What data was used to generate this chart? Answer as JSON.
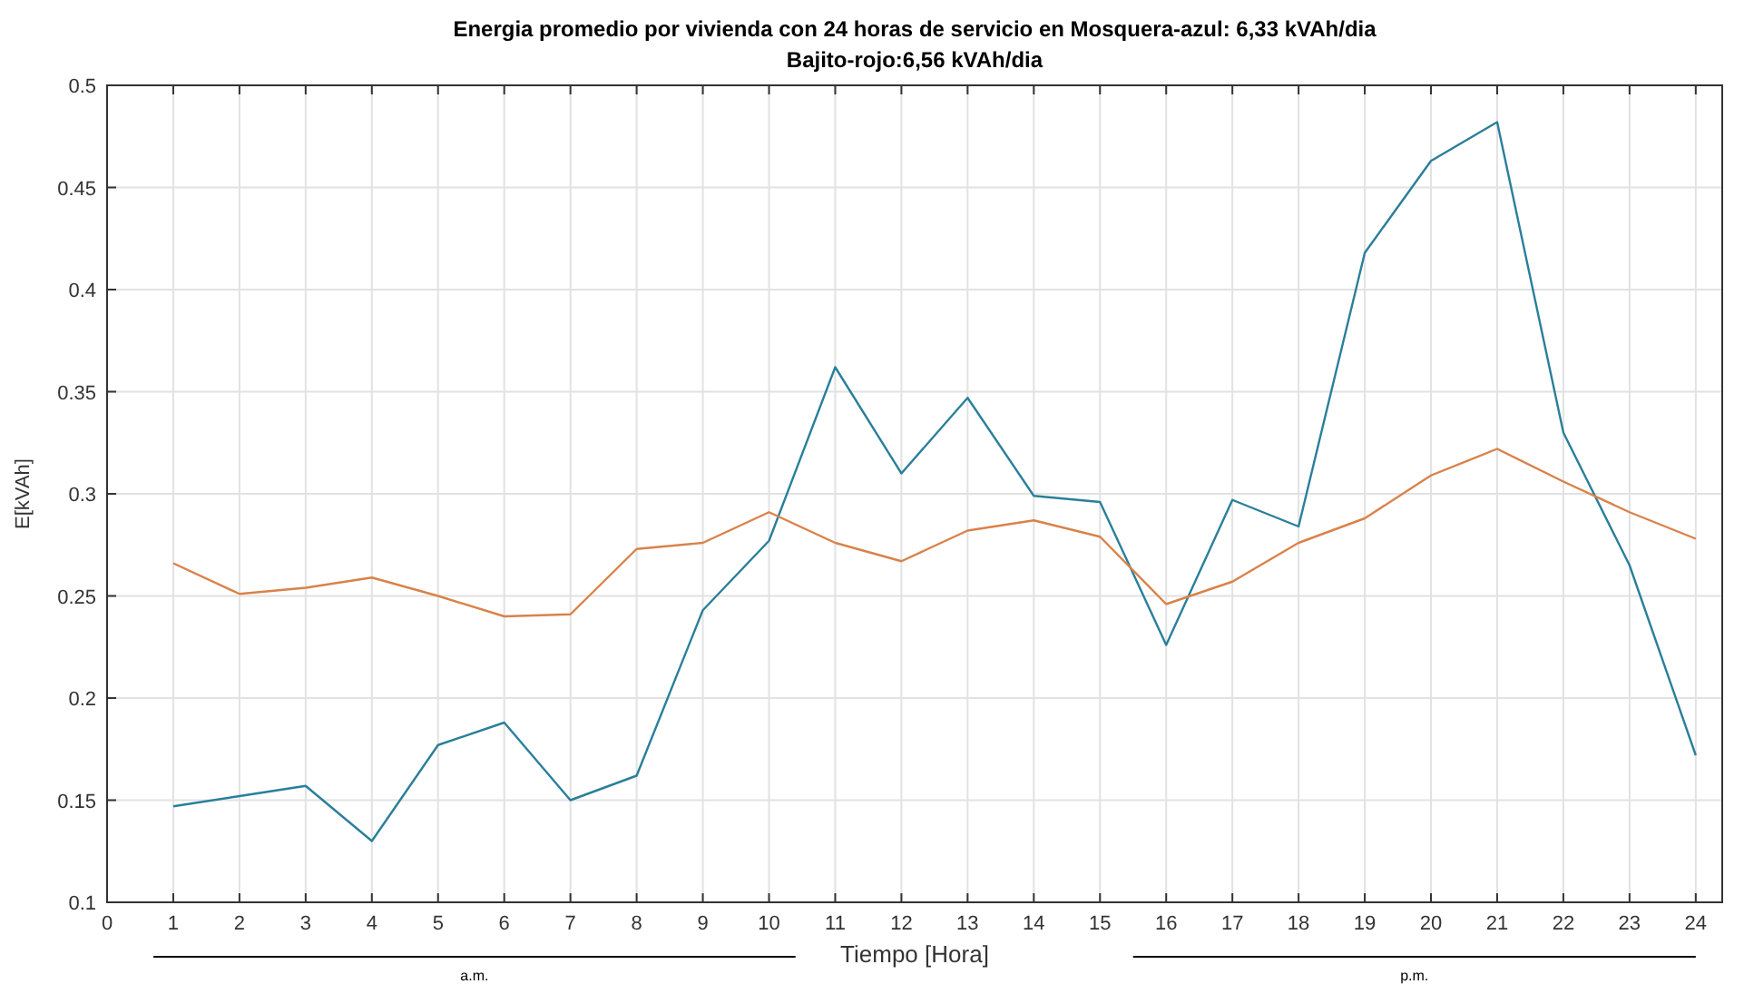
{
  "chart_data": {
    "type": "line",
    "title": "Energia promedio por vivienda con 24 horas de servicio en Mosquera-azul: 6,33 kVAh/dia",
    "subtitle": "Bajito-rojo:6,56 kVAh/dia",
    "xlabel": "Tiempo [Hora]",
    "ylabel": "E[kVAh]",
    "x": [
      1,
      2,
      3,
      4,
      5,
      6,
      7,
      8,
      9,
      10,
      11,
      12,
      13,
      14,
      15,
      16,
      17,
      18,
      19,
      20,
      21,
      22,
      23,
      24
    ],
    "series": [
      {
        "color": "#2a7f9a",
        "values": [
          0.147,
          0.152,
          0.157,
          0.13,
          0.177,
          0.188,
          0.15,
          0.162,
          0.243,
          0.277,
          0.362,
          0.31,
          0.347,
          0.299,
          0.296,
          0.226,
          0.297,
          0.284,
          0.418,
          0.463,
          0.482,
          0.33,
          0.265,
          0.172
        ]
      },
      {
        "color": "#d9824a",
        "values": [
          0.266,
          0.251,
          0.254,
          0.259,
          0.25,
          0.24,
          0.241,
          0.273,
          0.276,
          0.291,
          0.276,
          0.267,
          0.282,
          0.287,
          0.279,
          0.246,
          0.257,
          0.276,
          0.288,
          0.309,
          0.322,
          0.306,
          0.291,
          0.278
        ]
      }
    ],
    "xlim": [
      0,
      24.4
    ],
    "xticks": [
      0,
      1,
      2,
      3,
      4,
      5,
      6,
      7,
      8,
      9,
      10,
      11,
      12,
      13,
      14,
      15,
      16,
      17,
      18,
      19,
      20,
      21,
      22,
      23,
      24
    ],
    "ylim": [
      0.1,
      0.5
    ],
    "yticks": [
      0.1,
      0.15,
      0.2,
      0.25,
      0.3,
      0.35,
      0.4,
      0.45,
      0.5
    ],
    "grid": true,
    "line_style": "solid",
    "marker": "none",
    "annotations": [
      "a.m.",
      "p.m."
    ]
  }
}
